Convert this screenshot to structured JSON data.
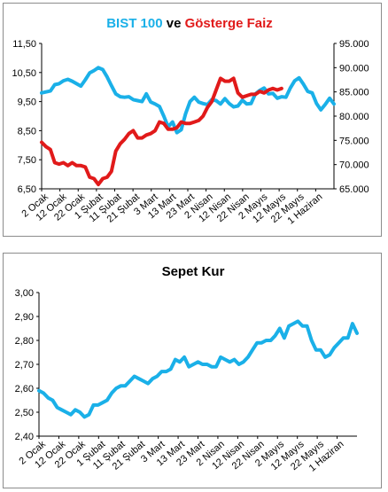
{
  "chart_data": [
    {
      "type": "line",
      "title_parts": [
        {
          "text": "BIST 100",
          "color": "#1ab0e8"
        },
        {
          "text": " ve ",
          "color": "#000000"
        },
        {
          "text": "Gösterge Faiz",
          "color": "#e11a1a"
        }
      ],
      "y_left": {
        "ticks": [
          "11,50",
          "10,50",
          "9,50",
          "8,50",
          "7,50",
          "6,50"
        ],
        "lim": [
          6.5,
          11.5
        ]
      },
      "y_right": {
        "ticks": [
          "95.000",
          "90.000",
          "85.000",
          "80.000",
          "75.000",
          "70.000",
          "65.000"
        ],
        "lim": [
          65000,
          95000
        ]
      },
      "x_ticks": [
        "2 Ocak",
        "12 Ocak",
        "22 Ocak",
        "1 Şubat",
        "11 Şubat",
        "21 Şubat",
        "3 Mart",
        "13 Mart",
        "23 Mart",
        "2 Nisan",
        "12 Nisan",
        "22 Nisan",
        "2 Mayıs",
        "12 Mayıs",
        "22 Mayıs",
        "1 Haziran"
      ],
      "series": [
        {
          "color": "#1ab0e8",
          "axis": "right",
          "values": [
            84800,
            85000,
            85200,
            86500,
            86700,
            87300,
            87600,
            87200,
            86700,
            86200,
            87500,
            88900,
            89400,
            90000,
            89600,
            88100,
            86300,
            84600,
            84000,
            83900,
            84000,
            83400,
            83200,
            83000,
            84600,
            82900,
            82500,
            82000,
            80000,
            77800,
            78800,
            76600,
            77200,
            80500,
            83000,
            83900,
            82900,
            82600,
            82400,
            83400,
            83200,
            82500,
            83600,
            82600,
            81900,
            82100,
            83300,
            82500,
            82600,
            84600,
            85300,
            85800,
            84600,
            84700,
            83700,
            84000,
            83900,
            85800,
            87300,
            87900,
            86600,
            85100,
            84800,
            82600,
            81300,
            82400,
            83700,
            82500
          ],
          "x_index": [
            0,
            1,
            2,
            3,
            4,
            5,
            6,
            7,
            8,
            9,
            10,
            11,
            12,
            13,
            14,
            15,
            16,
            17,
            18,
            19,
            20,
            21,
            22,
            23,
            24,
            25,
            26,
            27,
            28,
            29,
            30,
            31,
            32,
            33,
            34,
            35,
            36,
            37,
            38,
            39,
            40,
            41,
            42,
            43,
            44,
            45,
            46,
            47,
            48,
            49,
            50,
            51,
            52,
            53,
            54,
            55,
            56,
            57,
            58,
            59,
            60,
            61,
            62,
            63,
            64,
            65,
            66,
            67
          ]
        },
        {
          "color": "#e11a1a",
          "axis": "left",
          "values": [
            8.1,
            7.95,
            7.85,
            7.4,
            7.35,
            7.4,
            7.3,
            7.4,
            7.3,
            7.3,
            7.25,
            6.9,
            6.85,
            6.65,
            6.85,
            6.9,
            7.1,
            7.8,
            8.05,
            8.2,
            8.4,
            8.5,
            8.25,
            8.25,
            8.35,
            8.4,
            8.5,
            8.8,
            8.75,
            8.55,
            8.55,
            8.6,
            8.8,
            8.75,
            8.75,
            8.8,
            8.85,
            9.0,
            9.3,
            9.5,
            9.9,
            10.3,
            10.2,
            10.2,
            10.3,
            9.8,
            9.65,
            9.7,
            9.75,
            9.75,
            9.85,
            9.8,
            9.9,
            9.95,
            9.9,
            9.95
          ],
          "x_index": [
            0,
            1,
            2,
            3,
            4,
            5,
            6,
            7,
            8,
            9,
            10,
            11,
            12,
            13,
            14,
            15,
            16,
            17,
            18,
            19,
            20,
            21,
            22,
            23,
            24,
            25,
            26,
            27,
            28,
            29,
            30,
            31,
            32,
            33,
            34,
            35,
            36,
            37,
            38,
            39,
            40,
            41,
            42,
            43,
            44,
            45,
            46,
            47,
            48,
            49,
            50,
            51,
            52,
            53,
            54,
            55
          ]
        }
      ],
      "grid": false,
      "legend": "none"
    },
    {
      "type": "line",
      "title": "Sepet Kur",
      "y_left": {
        "ticks": [
          "3,00",
          "2,90",
          "2,80",
          "2,70",
          "2,60",
          "2,50",
          "2,40"
        ],
        "lim": [
          2.4,
          3.0
        ]
      },
      "x_ticks": [
        "2 Ocak",
        "12 Ocak",
        "22 Ocak",
        "1 Şubat",
        "11 Şubat",
        "21 Şubat",
        "3 Mart",
        "13 Mart",
        "23 Mart",
        "2 Nisan",
        "12 Nisan",
        "22 Nisan",
        "2 Mayıs",
        "12 Mayıs",
        "22 Mayıs",
        "1 Haziran"
      ],
      "series": [
        {
          "color": "#1ab0e8",
          "values": [
            2.59,
            2.58,
            2.56,
            2.55,
            2.52,
            2.51,
            2.5,
            2.49,
            2.51,
            2.5,
            2.48,
            2.49,
            2.53,
            2.53,
            2.54,
            2.55,
            2.58,
            2.6,
            2.61,
            2.61,
            2.63,
            2.65,
            2.64,
            2.63,
            2.62,
            2.64,
            2.65,
            2.67,
            2.67,
            2.68,
            2.72,
            2.71,
            2.73,
            2.69,
            2.7,
            2.71,
            2.7,
            2.7,
            2.69,
            2.69,
            2.73,
            2.72,
            2.71,
            2.72,
            2.7,
            2.71,
            2.73,
            2.76,
            2.79,
            2.79,
            2.8,
            2.8,
            2.82,
            2.85,
            2.81,
            2.86,
            2.87,
            2.88,
            2.86,
            2.86,
            2.8,
            2.76,
            2.76,
            2.73,
            2.74,
            2.77,
            2.79,
            2.81,
            2.81,
            2.87,
            2.83
          ],
          "x_index": [
            0,
            1,
            2,
            3,
            4,
            5,
            6,
            7,
            8,
            9,
            10,
            11,
            12,
            13,
            14,
            15,
            16,
            17,
            18,
            19,
            20,
            21,
            22,
            23,
            24,
            25,
            26,
            27,
            28,
            29,
            30,
            31,
            32,
            33,
            34,
            35,
            36,
            37,
            38,
            39,
            40,
            41,
            42,
            43,
            44,
            45,
            46,
            47,
            48,
            49,
            50,
            51,
            52,
            53,
            54,
            55,
            56,
            57,
            58,
            59,
            60,
            61,
            62,
            63,
            64,
            65,
            66,
            67,
            68,
            69,
            70
          ]
        }
      ],
      "grid": false,
      "legend": "none"
    }
  ]
}
